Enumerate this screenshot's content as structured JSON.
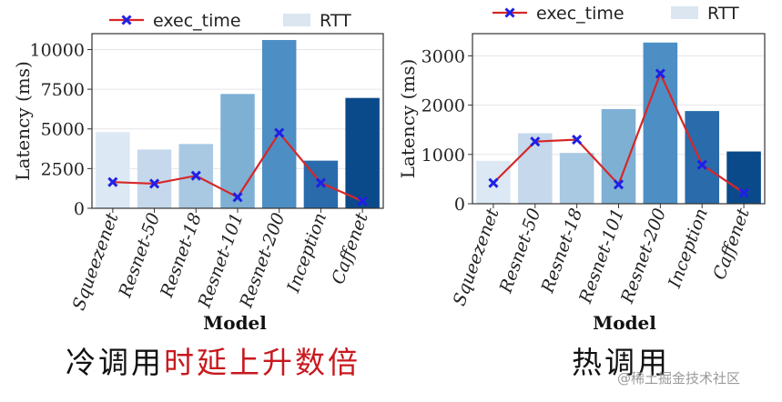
{
  "colors": {
    "line": "#d62728",
    "marker": "#1f1fe8",
    "rtt_legend": "#dbe6f1",
    "bars": [
      "#dce8f3",
      "#c6d9ec",
      "#a9c8e1",
      "#7eb0d4",
      "#4d8fc4",
      "#2a6bab",
      "#0b4a8a"
    ]
  },
  "legend": {
    "line_label": "exec_time",
    "bar_label": "RTT"
  },
  "chart_data": [
    {
      "type": "bar",
      "categories": [
        "Squeezenet",
        "Resnet-50",
        "Resnet-18",
        "Resnet-101",
        "Resnet-200",
        "Inception",
        "Caffenet"
      ],
      "xlabel": "Model",
      "ylabel": "Latency (ms)",
      "ylim": [
        0,
        11000
      ],
      "yticks": [
        0,
        2500,
        5000,
        7500,
        10000
      ],
      "ytick_labels": [
        "0",
        "2500",
        "5000",
        "7500",
        "10000"
      ],
      "grid": true,
      "legend_position": "top",
      "series": [
        {
          "name": "RTT",
          "type": "bar",
          "values": [
            4800,
            3700,
            4050,
            7200,
            10600,
            3000,
            6950
          ]
        },
        {
          "name": "exec_time",
          "type": "line",
          "values": [
            1650,
            1550,
            2050,
            700,
            4750,
            1600,
            450
          ]
        }
      ],
      "caption": {
        "normal": "冷调用",
        "highlight": "时延上升数倍"
      }
    },
    {
      "type": "bar",
      "categories": [
        "Squeezenet",
        "Resnet-50",
        "Resnet-18",
        "Resnet-101",
        "Resnet-200",
        "Inception",
        "Caffenet"
      ],
      "xlabel": "Model",
      "ylabel": "Latency (ms)",
      "ylim": [
        0,
        3450
      ],
      "yticks": [
        0,
        1000,
        2000,
        3000
      ],
      "ytick_labels": [
        "0",
        "1000",
        "2000",
        "3000"
      ],
      "grid": true,
      "legend_position": "top",
      "series": [
        {
          "name": "RTT",
          "type": "bar",
          "values": [
            870,
            1430,
            1030,
            1920,
            3270,
            1880,
            1060
          ]
        },
        {
          "name": "exec_time",
          "type": "line",
          "values": [
            420,
            1260,
            1300,
            390,
            2640,
            790,
            220
          ]
        }
      ],
      "caption": {
        "normal": "热调用",
        "highlight": ""
      }
    }
  ],
  "watermark": "@稀土掘金技术社区"
}
